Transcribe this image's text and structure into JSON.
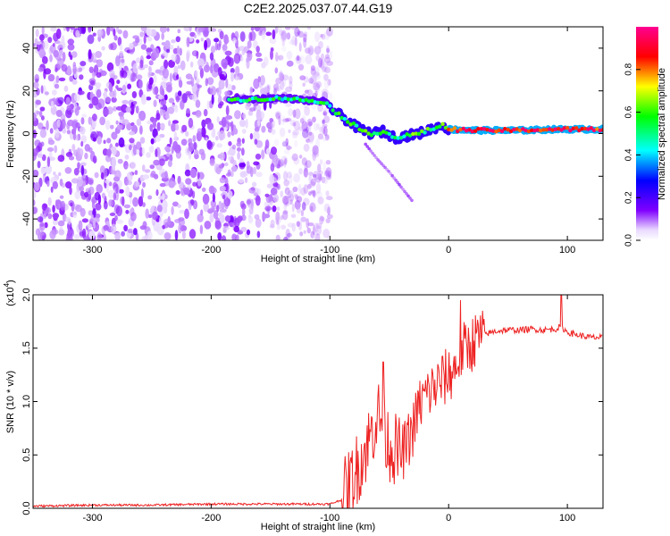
{
  "title": "C2E2.2025.037.07.44.G19",
  "chart_data": [
    {
      "type": "heatmap",
      "title": "C2E2.2025.037.07.44.G19",
      "xlabel": "Height of straight line (km)",
      "ylabel": "Frequency (Hz)",
      "xlim": [
        -350,
        130
      ],
      "ylim": [
        -50,
        50
      ],
      "xticks": [
        -300,
        -200,
        -100,
        0,
        100
      ],
      "yticks": [
        -40,
        -20,
        0,
        20,
        40
      ],
      "colorbar": {
        "label": "Normalized spectral amplitude",
        "ticks": [
          0.0,
          0.2,
          0.4,
          0.6,
          0.8
        ],
        "tick_labels": [
          "0.0",
          "0.2",
          "0.4",
          "0.6",
          "0.8"
        ],
        "range": [
          0,
          1
        ],
        "colors": [
          "#ffffff",
          "#8000ff",
          "#0000ff",
          "#00ffff",
          "#00ff00",
          "#ffff00",
          "#ff0000",
          "#ff00a0"
        ]
      },
      "signal_track": {
        "x": [
          -185,
          -170,
          -150,
          -135,
          -120,
          -105,
          -95,
          -85,
          -75,
          -65,
          -55,
          -45,
          -35,
          -25,
          -15,
          -5,
          0,
          20,
          60,
          90,
          100,
          130
        ],
        "y": [
          16,
          16,
          16.5,
          16.5,
          15.5,
          15,
          10,
          6,
          2,
          0,
          1,
          -2,
          -1,
          0,
          2,
          4,
          2,
          1.5,
          1.5,
          2,
          2,
          2
        ]
      },
      "branch_track": {
        "x": [
          -70,
          -60,
          -50,
          -40,
          -30
        ],
        "y": [
          -5,
          -12,
          -18,
          -25,
          -32
        ]
      },
      "noise_region_xlim": [
        -350,
        -100
      ]
    },
    {
      "type": "line",
      "xlabel": "Height of straight line (km)",
      "ylabel": "SNR (10 * v/v)",
      "scale_label": "(x10",
      "scale_exponent": "4",
      "xlim": [
        -350,
        130
      ],
      "ylim": [
        0,
        2.0
      ],
      "xticks": [
        -300,
        -200,
        -100,
        0,
        100
      ],
      "yticks": [
        0.0,
        0.5,
        1.0,
        1.5,
        2.0
      ],
      "ytick_labels": [
        "0.0",
        "0.5",
        "1.0",
        "1.5",
        "2.0"
      ],
      "series": [
        {
          "color": "#ee2222",
          "x": [
            -350,
            -300,
            -250,
            -200,
            -150,
            -100,
            -90,
            -80,
            -70,
            -65,
            -60,
            -55,
            -50,
            -45,
            -40,
            -35,
            -30,
            -25,
            -20,
            -15,
            -10,
            -5,
            0,
            5,
            10,
            15,
            20,
            25,
            30,
            40,
            50,
            60,
            70,
            80,
            90,
            95,
            100,
            110,
            120,
            130
          ],
          "y": [
            0.02,
            0.03,
            0.03,
            0.04,
            0.04,
            0.04,
            0.08,
            0.3,
            0.55,
            0.7,
            0.9,
            0.75,
            0.6,
            0.55,
            0.5,
            0.6,
            0.75,
            0.95,
            1.05,
            1.1,
            1.15,
            1.2,
            1.25,
            1.3,
            1.45,
            1.5,
            1.55,
            1.6,
            1.63,
            1.66,
            1.67,
            1.67,
            1.68,
            1.67,
            1.68,
            1.7,
            1.65,
            1.62,
            1.6,
            1.6
          ]
        }
      ]
    }
  ]
}
